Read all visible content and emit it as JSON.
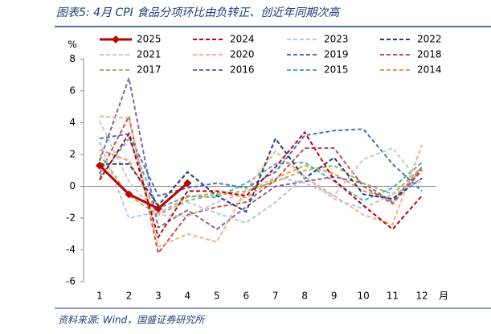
{
  "chart_data": {
    "type": "line",
    "title": "图表5: 4月 CPI 食品分项环比由负转正、创近年同期次高",
    "source": "资料来源: Wind，国盛证券研究所",
    "ylabel": "%",
    "xlabel": "月",
    "categories": [
      "1",
      "2",
      "3",
      "4",
      "5",
      "6",
      "7",
      "8",
      "9",
      "10",
      "11",
      "12"
    ],
    "ylim": [
      -6,
      8
    ],
    "yticks": [
      -6,
      -4,
      -2,
      0,
      2,
      4,
      6,
      8
    ],
    "series": [
      {
        "name": "2025",
        "color": "#c00000",
        "values": [
          1.3,
          -0.5,
          -1.4,
          0.2,
          null,
          null,
          null,
          null,
          null,
          null,
          null,
          null
        ]
      },
      {
        "name": "2024",
        "color": "#c00000",
        "values": [
          0.4,
          3.3,
          -3.2,
          -0.3,
          -0.3,
          -0.6,
          1.2,
          3.4,
          0.4,
          -1.2,
          -2.7,
          -0.6
        ]
      },
      {
        "name": "2023",
        "color": "#b4c7e7",
        "values": [
          2.8,
          -2.0,
          -1.6,
          -1.0,
          -1.7,
          -2.3,
          -1.0,
          0.6,
          -0.8,
          -1.4,
          -0.5,
          0.4
        ]
      },
      {
        "name": "2022",
        "color": "#1f3d7a",
        "values": [
          1.4,
          1.4,
          -1.2,
          0.9,
          -0.6,
          -1.6,
          3.0,
          0.5,
          1.8,
          -0.5,
          -0.8,
          0.5
        ]
      },
      {
        "name": "2021",
        "color": "#c9c9c9",
        "values": [
          4.1,
          0.3,
          -1.8,
          -1.9,
          -1.0,
          -0.4,
          0.6,
          0.2,
          -0.6,
          1.7,
          2.4,
          0.1
        ]
      },
      {
        "name": "2020",
        "color": "#f4b183",
        "values": [
          4.4,
          4.3,
          -3.8,
          -3.0,
          -3.5,
          -0.2,
          2.2,
          0.6,
          -0.6,
          -1.8,
          -2.4,
          2.6
        ]
      },
      {
        "name": "2019",
        "color": "#4472c4",
        "values": [
          3.0,
          3.3,
          -0.6,
          -0.1,
          0.2,
          -0.1,
          0.9,
          3.2,
          3.5,
          3.6,
          1.4,
          -0.3
        ]
      },
      {
        "name": "2018",
        "color": "#c0504d",
        "values": [
          0.8,
          4.4,
          -4.2,
          -1.8,
          -1.3,
          -1.0,
          0.4,
          2.4,
          2.4,
          0.0,
          -1.1,
          1.0
        ]
      },
      {
        "name": "2017",
        "color": "#9bbb59",
        "values": [
          2.0,
          -0.6,
          -1.8,
          -0.9,
          -0.5,
          -0.3,
          0.3,
          1.0,
          1.3,
          0.2,
          -0.5,
          1.2
        ]
      },
      {
        "name": "2016",
        "color": "#8064a2",
        "values": [
          1.6,
          6.8,
          -2.6,
          -1.5,
          -2.7,
          -1.3,
          0.0,
          0.3,
          0.6,
          0.2,
          -1.0,
          1.2
        ]
      },
      {
        "name": "2015",
        "color": "#4bacc6",
        "values": [
          0.6,
          3.0,
          -1.4,
          -0.6,
          -0.7,
          0.2,
          1.4,
          1.5,
          0.3,
          -0.9,
          -0.1,
          1.5
        ]
      },
      {
        "name": "2014",
        "color": "#f79646",
        "values": [
          2.3,
          1.6,
          -1.7,
          -0.7,
          -0.4,
          -0.7,
          0.5,
          1.3,
          0.8,
          -0.3,
          -0.8,
          1.1
        ]
      }
    ]
  }
}
